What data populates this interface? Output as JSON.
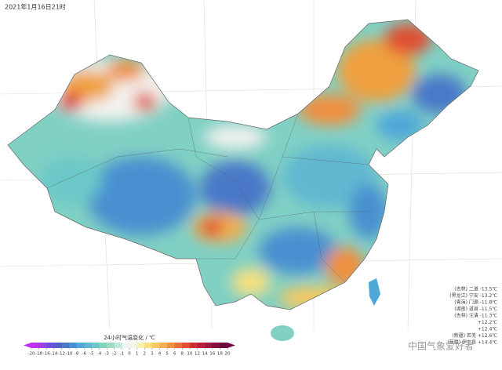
{
  "header": {
    "title": "2021年1月16日21时"
  },
  "legend": {
    "title": "24小时气温变化 / ℃",
    "ticks": [
      -20,
      -18,
      -16,
      -14,
      -12,
      -10,
      -8,
      -6,
      -5,
      -4,
      -3,
      -2,
      -1,
      0,
      1,
      2,
      3,
      4,
      5,
      6,
      8,
      10,
      12,
      14,
      16,
      18,
      20
    ],
    "colors": [
      "#c030f0",
      "#9a40e8",
      "#7050d8",
      "#5060c8",
      "#4a78c8",
      "#4a90d0",
      "#50a8d8",
      "#60b8d0",
      "#6cc8c8",
      "#80d4c0",
      "#9cdcc0",
      "#c0e8d8",
      "#eef4f0",
      "#f4f4e8",
      "#f8f0b0",
      "#f8e080",
      "#f8c860",
      "#f0b050",
      "#f09040",
      "#e87038",
      "#e05030",
      "#d03030",
      "#b82040",
      "#a01840",
      "#881040",
      "#700840"
    ]
  },
  "stations": [
    "(吉林) 二道 -13.5℃",
    "(黑龙江) 宁安 -13.2℃",
    "(青海) 门源 -11.8℃",
    "(湖南) 道县 -11.5℃",
    "(吉林) 汪清 -11.3℃",
    "+12.2℃",
    "+12.4℃",
    "(新疆) 若羌 +12.6℃",
    "(新疆) 伊宁县 +14.4℃"
  ],
  "watermark": "中国气象爱好者"
}
